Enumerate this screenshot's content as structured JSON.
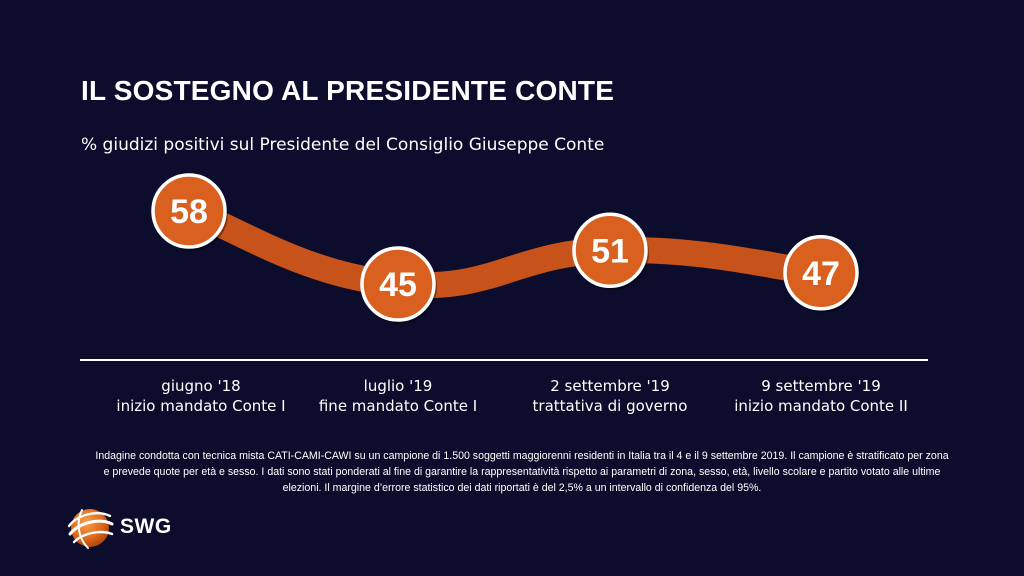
{
  "title": "IL SOSTEGNO AL PRESIDENTE CONTE",
  "subtitle": "% giudizi positivi sul Presidente del Consiglio Giuseppe Conte",
  "chart_data": {
    "type": "line",
    "title": "IL SOSTEGNO AL PRESIDENTE CONTE",
    "subtitle": "% giudizi positivi sul Presidente del Consiglio Giuseppe Conte",
    "categories": [
      {
        "date": "giugno '18",
        "event": "inizio mandato Conte I"
      },
      {
        "date": "luglio '19",
        "event": "fine mandato Conte I"
      },
      {
        "date": "2 settembre '19",
        "event": "trattativa di governo"
      },
      {
        "date": "9 settembre '19",
        "event": "inizio mandato Conte II"
      }
    ],
    "series": [
      {
        "values": [
          58,
          45,
          51,
          47
        ]
      }
    ],
    "ylabel": "",
    "xlabel": "",
    "grid": false,
    "colors": {
      "line": "#c8531a",
      "marker_fill": "#d9601e",
      "marker_border": "#ffffff",
      "background": "#0c0d2c"
    }
  },
  "footnote": "Indagine condotta con tecnica mista CATI-CAMI-CAWI su un campione di 1.500 soggetti maggiorenni residenti in Italia tra il 4 e il  9 settembre 2019. Il campione è stratificato per zona e prevede quote per età e sesso. I dati sono stati ponderati al fine di garantire la rappresentatività rispetto ai parametri di zona, sesso, età, livello scolare e partito votato alle ultime elezioni. Il margine d’errore statistico dei dati riportati è del 2,5% a un intervallo di confidenza del 95%.",
  "logo": {
    "text": "SWG",
    "icon": "globe-icon"
  }
}
